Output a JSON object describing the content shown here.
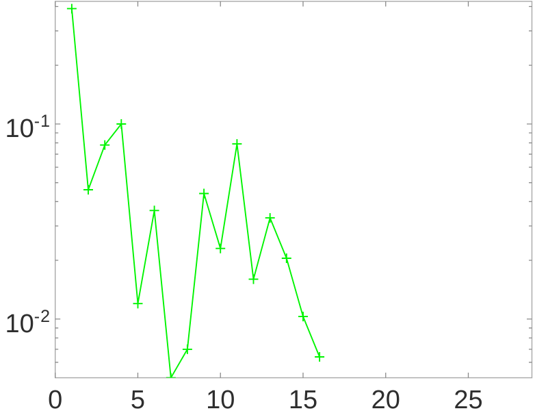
{
  "figure": {
    "background": "#ffffff",
    "title": "",
    "xlabel": "",
    "ylabel": ""
  },
  "chart_data": {
    "type": "line",
    "yscale": "log",
    "xlim": [
      0,
      28.85
    ],
    "ylim": [
      0.005,
      0.425
    ],
    "grid": false,
    "legend": null,
    "title": "",
    "xlabel": "",
    "ylabel": "",
    "xticks": [
      {
        "value": 0,
        "label": "0"
      },
      {
        "value": 5,
        "label": "5"
      },
      {
        "value": 10,
        "label": "10"
      },
      {
        "value": 15,
        "label": "15"
      },
      {
        "value": 20,
        "label": "20"
      },
      {
        "value": 25,
        "label": "25"
      }
    ],
    "yticks": [
      {
        "value": 0.1,
        "mantissa": "10",
        "exponent": "-1"
      },
      {
        "value": 0.01,
        "mantissa": "10",
        "exponent": "-2"
      }
    ],
    "series": [
      {
        "name": "green-plus-line",
        "color": "#00f400",
        "marker": "plus",
        "x": [
          1,
          2,
          3,
          4,
          5,
          6,
          7,
          8,
          9,
          10,
          11,
          12,
          13,
          14,
          15,
          16
        ],
        "y": [
          0.39,
          0.046,
          0.078,
          0.1,
          0.012,
          0.036,
          0.005,
          0.007,
          0.044,
          0.023,
          0.079,
          0.016,
          0.033,
          0.0205,
          0.0103,
          0.0064
        ]
      }
    ],
    "colors": {
      "box": "#a8a8a8",
      "tick": "#8a8a8a",
      "text": "#2e2e2e"
    }
  }
}
